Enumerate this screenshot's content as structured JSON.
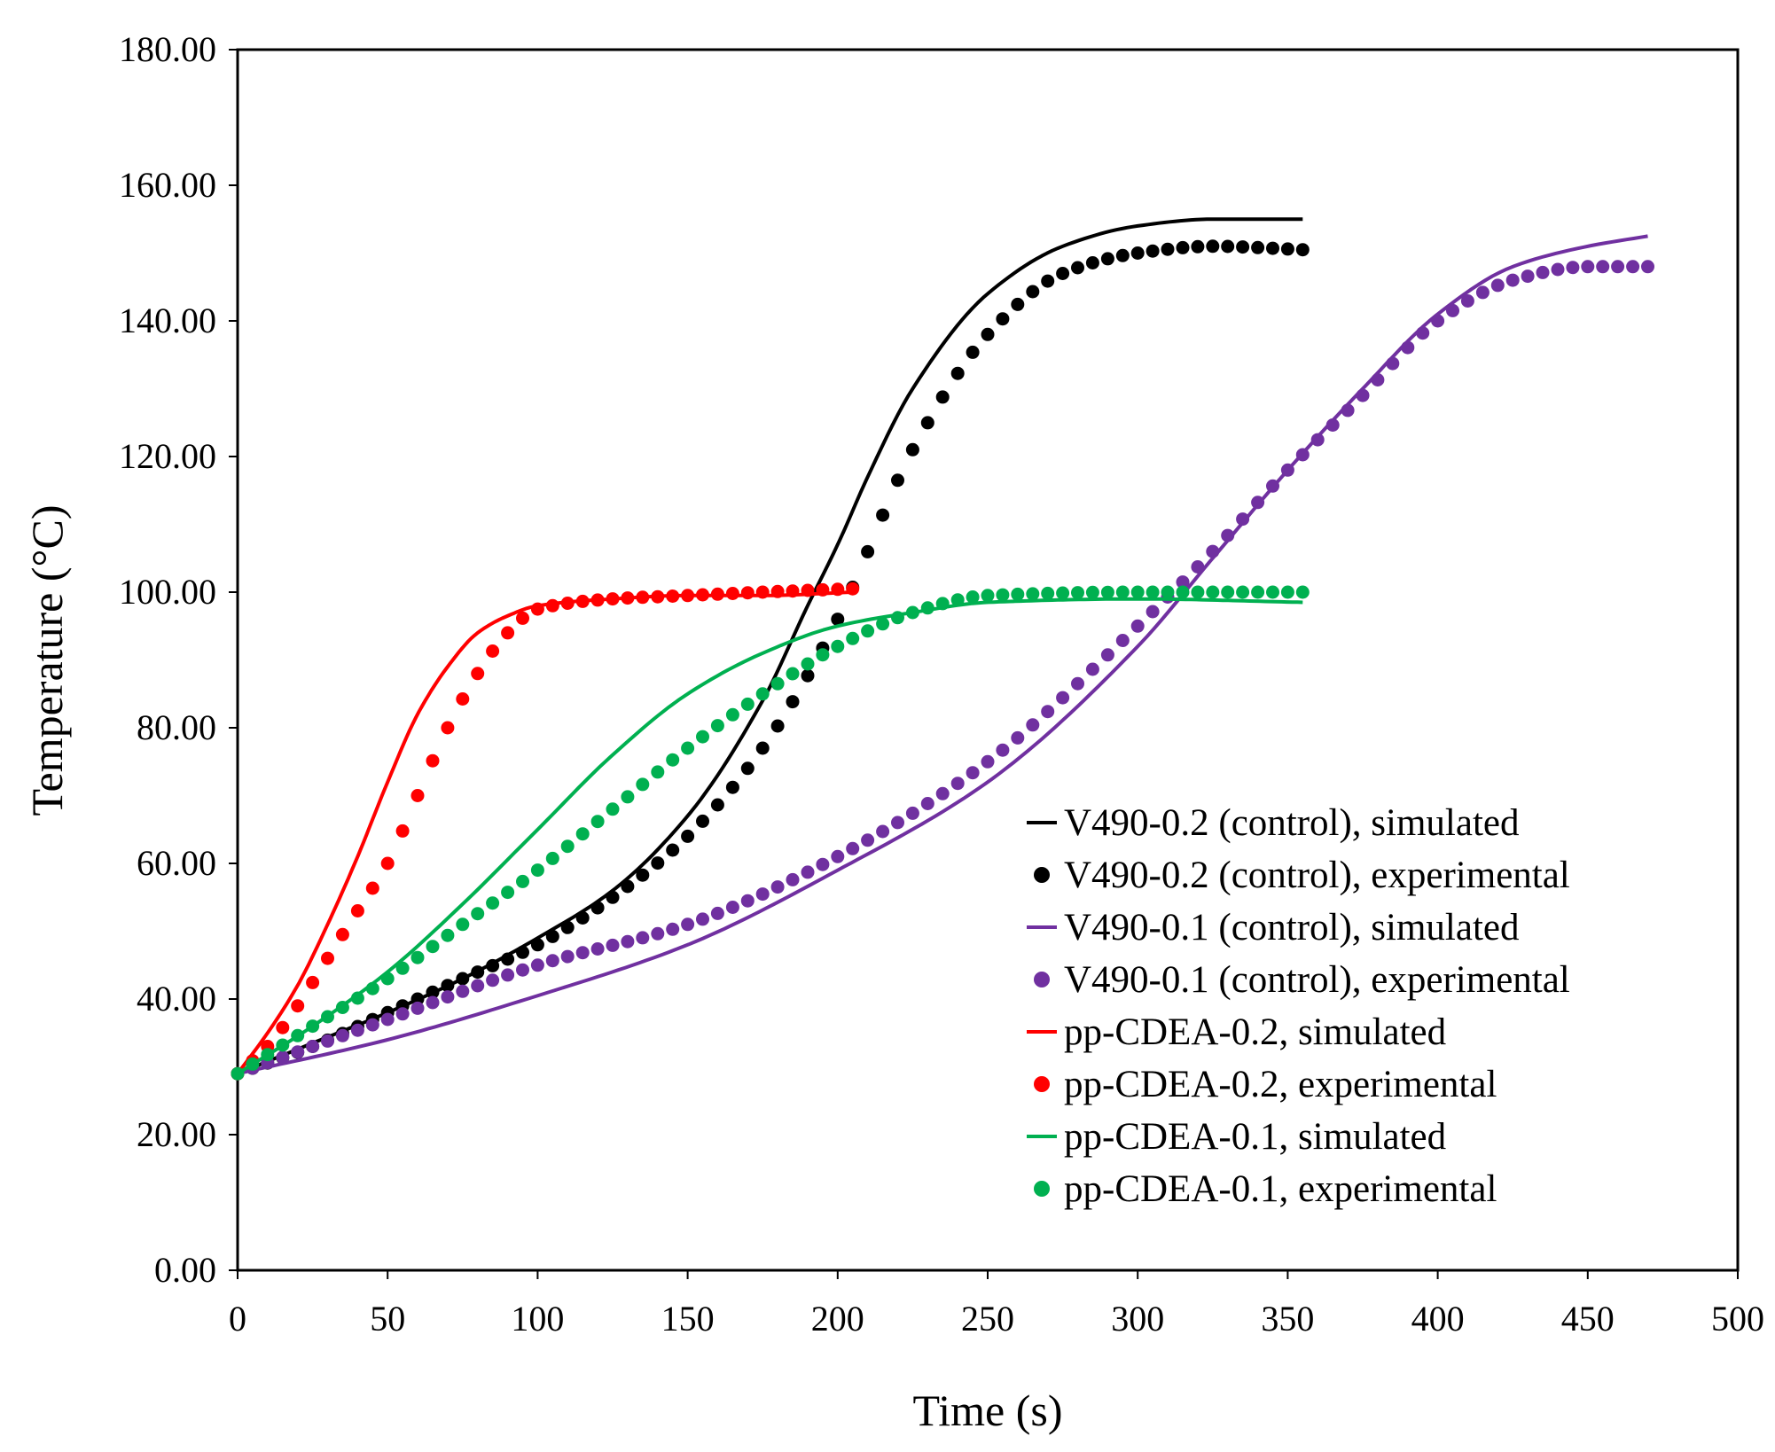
{
  "chart_data": {
    "type": "line",
    "title": "",
    "xlabel": "Time (s)",
    "ylabel": "Temperature (°C)",
    "xlim": [
      0,
      500
    ],
    "ylim": [
      0,
      180
    ],
    "xticks": [
      "0",
      "50",
      "100",
      "150",
      "200",
      "250",
      "300",
      "350",
      "400",
      "450",
      "500"
    ],
    "yticks": [
      "0.00",
      "20.00",
      "40.00",
      "60.00",
      "80.00",
      "100.00",
      "120.00",
      "140.00",
      "160.00",
      "180.00"
    ],
    "grid": false,
    "legend_position": "bottom-right",
    "series": [
      {
        "name": "V490-0.2 (control), simulated",
        "style": "line",
        "color": "#000000",
        "x": [
          0,
          25,
          50,
          75,
          100,
          125,
          150,
          175,
          190,
          200,
          210,
          225,
          250,
          275,
          300,
          325,
          350,
          355
        ],
        "y": [
          29,
          33.5,
          38,
          43,
          49,
          56,
          67,
          84,
          98,
          107,
          117,
          130,
          144,
          151,
          154,
          155,
          155,
          155
        ]
      },
      {
        "name": "V490-0.2 (control), experimental",
        "style": "points",
        "color": "#000000",
        "x": [
          0,
          25,
          50,
          75,
          100,
          125,
          150,
          175,
          200,
          225,
          250,
          275,
          300,
          325,
          355
        ],
        "y": [
          29,
          33,
          38,
          43,
          48,
          55,
          64,
          77,
          96,
          121,
          138,
          147,
          150,
          151,
          150.5
        ]
      },
      {
        "name": "V490-0.1 (control), simulated",
        "style": "line",
        "color": "#7030a0",
        "x": [
          0,
          50,
          100,
          150,
          200,
          250,
          300,
          325,
          350,
          375,
          400,
          425,
          450,
          470
        ],
        "y": [
          29,
          34,
          40.5,
          48,
          59,
          72,
          92,
          105,
          118,
          130,
          141,
          148,
          151,
          152.5
        ]
      },
      {
        "name": "V490-0.1 (control), experimental",
        "style": "points",
        "color": "#7030a0",
        "x": [
          0,
          50,
          100,
          150,
          200,
          250,
          300,
          325,
          350,
          375,
          400,
          425,
          450,
          470
        ],
        "y": [
          29,
          37,
          45,
          51,
          61,
          75,
          95,
          106,
          118,
          129,
          140,
          146,
          148,
          148
        ]
      },
      {
        "name": "pp-CDEA-0.2, simulated",
        "style": "line",
        "color": "#ff0000",
        "x": [
          0,
          10,
          20,
          30,
          40,
          50,
          60,
          70,
          80,
          90,
          100,
          125,
          150,
          175,
          205
        ],
        "y": [
          29,
          35,
          42,
          51,
          61,
          72,
          82,
          89,
          94,
          96.5,
          98,
          99,
          99.5,
          99.5,
          100
        ]
      },
      {
        "name": "pp-CDEA-0.2, experimental",
        "style": "points",
        "color": "#ff0000",
        "x": [
          0,
          10,
          20,
          30,
          40,
          50,
          60,
          70,
          80,
          90,
          100,
          125,
          150,
          175,
          205
        ],
        "y": [
          29,
          33,
          39,
          46,
          53,
          60,
          70,
          80,
          88,
          94,
          97.5,
          99,
          99.5,
          100,
          100.5
        ]
      },
      {
        "name": "pp-CDEA-0.1, simulated",
        "style": "line",
        "color": "#00b050",
        "x": [
          0,
          25,
          50,
          75,
          100,
          125,
          150,
          175,
          200,
          225,
          250,
          300,
          355
        ],
        "y": [
          29,
          36,
          44,
          54,
          65,
          76,
          85,
          91,
          95,
          97,
          98.5,
          99,
          98.5
        ]
      },
      {
        "name": "pp-CDEA-0.1, experimental",
        "style": "points",
        "color": "#00b050",
        "x": [
          0,
          25,
          50,
          75,
          100,
          125,
          150,
          175,
          200,
          225,
          250,
          300,
          355
        ],
        "y": [
          29,
          36,
          43,
          51,
          59,
          68,
          77,
          85,
          92,
          97,
          99.5,
          100,
          100
        ]
      }
    ]
  }
}
